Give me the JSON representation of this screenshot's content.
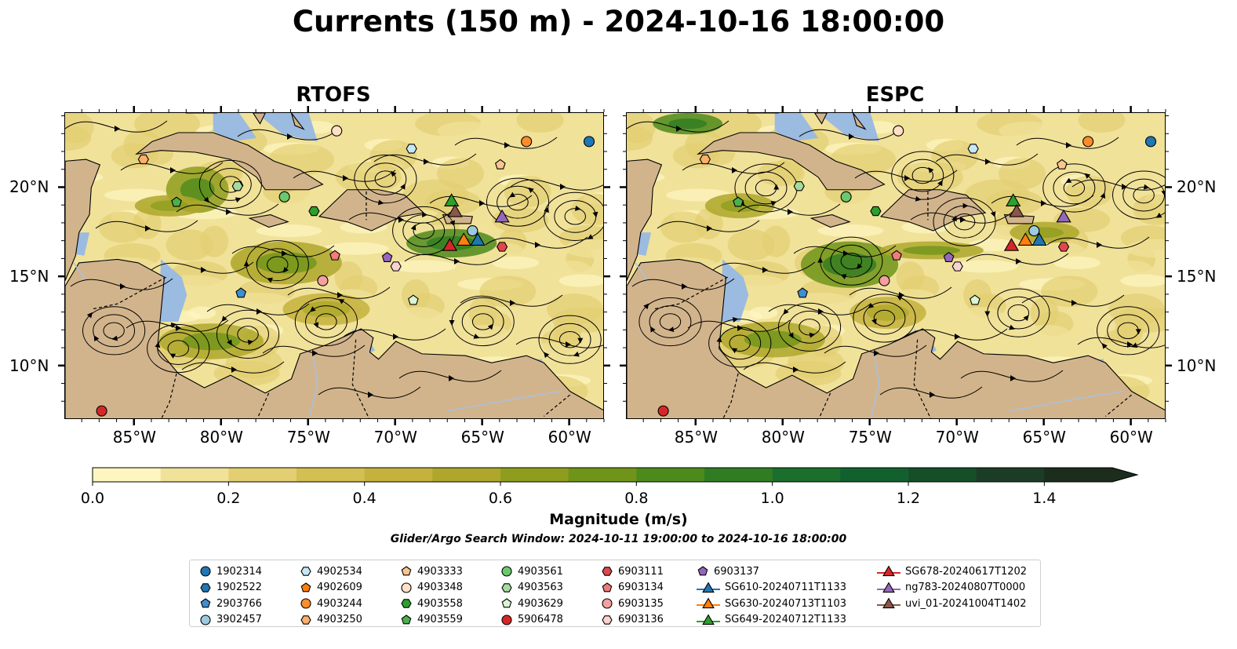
{
  "title": "Currents (150 m) - 2024-10-16 18:00:00",
  "panels": [
    {
      "title": "RTOFS"
    },
    {
      "title": "ESPC"
    }
  ],
  "map_extent": {
    "lon": [
      -89,
      -58
    ],
    "lat": [
      7,
      24.2
    ]
  },
  "lon_ticks": [
    {
      "value": -85,
      "label": "85°W"
    },
    {
      "value": -80,
      "label": "80°W"
    },
    {
      "value": -75,
      "label": "75°W"
    },
    {
      "value": -70,
      "label": "70°W"
    },
    {
      "value": -65,
      "label": "65°W"
    },
    {
      "value": -60,
      "label": "60°W"
    }
  ],
  "lat_ticks": [
    {
      "value": 20,
      "label": "20°N"
    },
    {
      "value": 15,
      "label": "15°N"
    },
    {
      "value": 10,
      "label": "10°N"
    }
  ],
  "colors": {
    "land": "#d2b48c",
    "shallow": "#9bbbe0",
    "speed_low": "#fdf5c0",
    "speed_high": "#1a2e1a"
  },
  "colorbar": {
    "label": "Magnitude (m/s)",
    "range": [
      0,
      1.5
    ],
    "extend": "max",
    "ticks": [
      "0.0",
      "0.2",
      "0.4",
      "0.6",
      "0.8",
      "1.0",
      "1.2",
      "1.4"
    ],
    "levels": [
      "#fdf6c1",
      "#f1e29a",
      "#e3cf72",
      "#d3bf52",
      "#c4b23d",
      "#aea72c",
      "#8f9d1e",
      "#6f9419",
      "#4d8a1c",
      "#2f7c22",
      "#1b6e2c",
      "#13602f",
      "#174e2a",
      "#1c3d25",
      "#1c2c1d"
    ]
  },
  "search_window": "Glider/Argo Search Window: 2024-10-11 19:00:00 to 2024-10-16 18:00:00",
  "platforms": [
    {
      "id": "1902314",
      "marker": "circle",
      "color": "#1f77b4",
      "lon": -58.9,
      "lat": 22.6
    },
    {
      "id": "1902522",
      "marker": "hexagon",
      "color": "#1f77b4",
      "lon": null,
      "lat": null
    },
    {
      "id": "2903766",
      "marker": "pentagon",
      "color": "#3e8ed0",
      "lon": -78.9,
      "lat": 14.1
    },
    {
      "id": "3902457",
      "marker": "circle",
      "color": "#9ecae1",
      "lon": -65.6,
      "lat": 17.6
    },
    {
      "id": "4902534",
      "marker": "hexagon",
      "color": "#c6e7f7",
      "lon": -69.1,
      "lat": 22.2
    },
    {
      "id": "4902609",
      "marker": "pentagon",
      "color": "#ff7f0e",
      "lon": null,
      "lat": null
    },
    {
      "id": "4903244",
      "marker": "circle",
      "color": "#ff8c2a",
      "lon": -62.5,
      "lat": 22.6
    },
    {
      "id": "4903250",
      "marker": "hexagon",
      "color": "#fdae6b",
      "lon": -84.5,
      "lat": 21.6
    },
    {
      "id": "4903333",
      "marker": "pentagon",
      "color": "#fdc58e",
      "lon": -64.0,
      "lat": 21.3
    },
    {
      "id": "4903348",
      "marker": "circle",
      "color": "#fde0c6",
      "lon": -73.4,
      "lat": 23.2
    },
    {
      "id": "4903558",
      "marker": "hexagon",
      "color": "#2ca02c",
      "lon": -74.7,
      "lat": 18.7
    },
    {
      "id": "4903559",
      "marker": "pentagon",
      "color": "#4cb04c",
      "lon": -82.6,
      "lat": 19.2
    },
    {
      "id": "4903561",
      "marker": "circle",
      "color": "#6cc86c",
      "lon": -76.4,
      "lat": 19.5
    },
    {
      "id": "4903563",
      "marker": "hexagon",
      "color": "#a6dba0",
      "lon": -79.1,
      "lat": 20.1
    },
    {
      "id": "4903629",
      "marker": "pentagon",
      "color": "#d9f5d3",
      "lon": -69.0,
      "lat": 13.7
    },
    {
      "id": "5906478",
      "marker": "circle",
      "color": "#d62728",
      "lon": -86.9,
      "lat": 7.5
    },
    {
      "id": "6903111",
      "marker": "hexagon",
      "color": "#e0474c",
      "lon": -63.9,
      "lat": 16.7
    },
    {
      "id": "6903134",
      "marker": "pentagon",
      "color": "#f07c7c",
      "lon": -73.5,
      "lat": 16.2
    },
    {
      "id": "6903135",
      "marker": "circle",
      "color": "#f4a0a0",
      "lon": -74.2,
      "lat": 14.8
    },
    {
      "id": "6903136",
      "marker": "hexagon",
      "color": "#fbd2d2",
      "lon": -70.0,
      "lat": 15.6
    },
    {
      "id": "6903137",
      "marker": "pentagon",
      "color": "#9467bd",
      "lon": -70.5,
      "lat": 16.1
    },
    {
      "id": "SG610-20240711T1133",
      "marker": "triangle",
      "line": true,
      "color": "#1f77b4",
      "lon": -65.3,
      "lat": 17.1
    },
    {
      "id": "SG630-20240713T1103",
      "marker": "triangle",
      "line": true,
      "color": "#ff7f0e",
      "lon": -66.1,
      "lat": 17.1
    },
    {
      "id": "SG649-20240712T1133",
      "marker": "triangle",
      "line": true,
      "color": "#2ca02c",
      "lon": -66.8,
      "lat": 19.3
    },
    {
      "id": "SG678-20240617T1202",
      "marker": "triangle",
      "line": true,
      "color": "#d62728",
      "lon": -66.9,
      "lat": 16.8
    },
    {
      "id": "ng783-20240807T0000",
      "marker": "triangle",
      "line": true,
      "color": "#9467bd",
      "lon": -63.9,
      "lat": 18.4
    },
    {
      "id": "uvi_01-20241004T1402",
      "marker": "triangle",
      "line": true,
      "color": "#8c564b",
      "lon": -66.6,
      "lat": 18.7
    }
  ]
}
